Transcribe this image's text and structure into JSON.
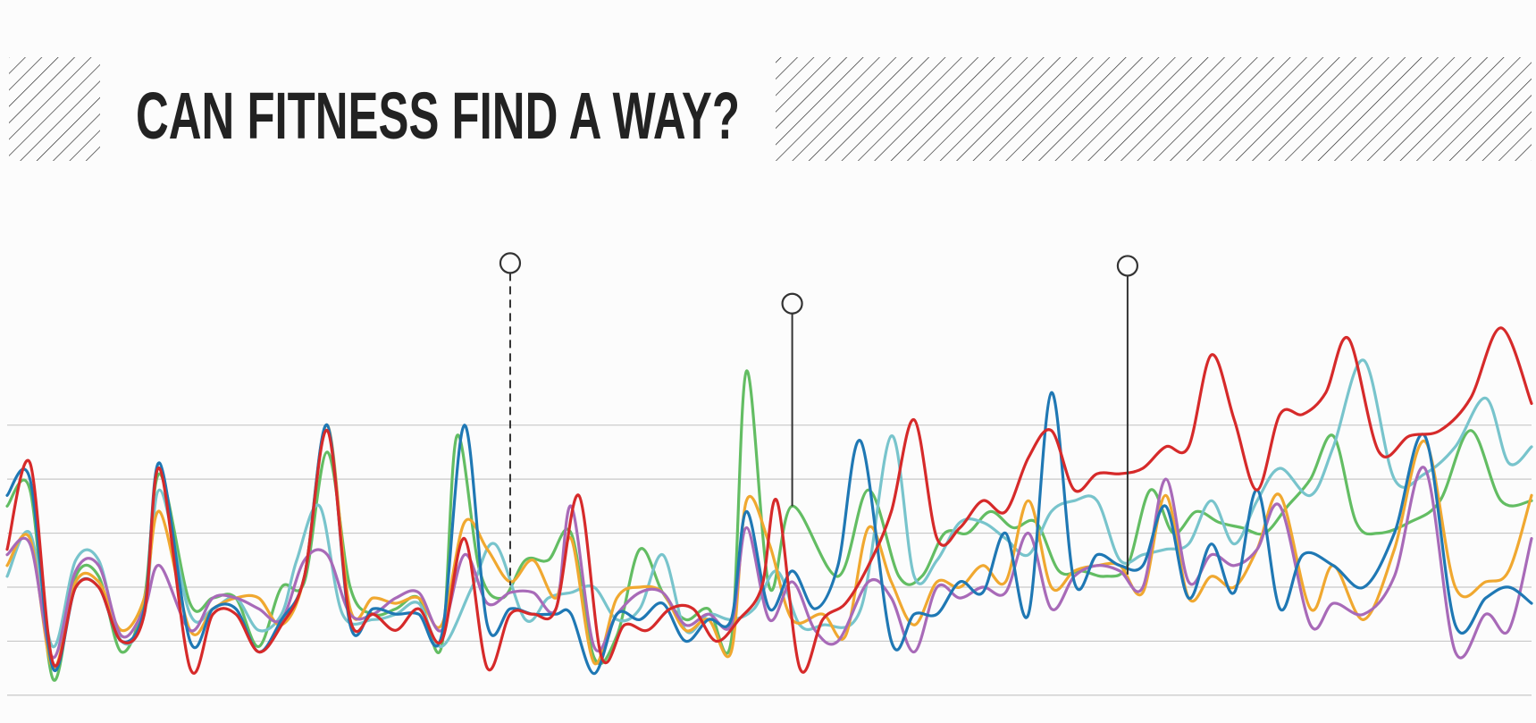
{
  "colors": {
    "background": "#fcfcfc",
    "title": "#222222",
    "hatch": "#222222",
    "grid": "#c8c8c8",
    "marker": "#333333"
  },
  "chart_data": {
    "type": "line",
    "title": "CAN FITNESS FIND A WAY?",
    "xlabel": "",
    "ylabel": "",
    "grid": true,
    "gridlines_y": [
      0,
      1,
      2,
      3,
      4,
      5
    ],
    "xlim": [
      0,
      200
    ],
    "ylim": [
      -0.3,
      8.9
    ],
    "annotations": [
      {
        "x": 66,
        "style": "dashed",
        "series": 0,
        "marker": "circle"
      },
      {
        "x": 103,
        "style": "solid",
        "series": 0,
        "marker": "circle"
      },
      {
        "x": 147,
        "style": "solid",
        "series": 2,
        "marker": "circle"
      }
    ],
    "series": [
      {
        "color": "#63bd63",
        "x": [
          0,
          3,
          6,
          9,
          12,
          15,
          18,
          20,
          24,
          27,
          30,
          33,
          36,
          39,
          42,
          45,
          48,
          51,
          54,
          57,
          59,
          62,
          65,
          68,
          71,
          74,
          77,
          80,
          83,
          86,
          89,
          92,
          95,
          97,
          100,
          103,
          109,
          113,
          117,
          120,
          123,
          126,
          129,
          132,
          135,
          138,
          141,
          144,
          147,
          150,
          153,
          156,
          159,
          162,
          165,
          168,
          171,
          174,
          177,
          180,
          184,
          188,
          192,
          196,
          200
        ],
        "y": [
          3.5,
          3.8,
          0.3,
          2.2,
          2.2,
          0.8,
          1.8,
          4.1,
          1.7,
          1.8,
          1.8,
          0.9,
          2.0,
          2.1,
          4.5,
          2.0,
          1.5,
          1.6,
          1.8,
          0.9,
          4.8,
          2.3,
          1.8,
          2.5,
          2.5,
          3.0,
          0.7,
          1.1,
          2.7,
          1.9,
          1.4,
          1.6,
          1.0,
          6.0,
          2.0,
          3.5,
          2.2,
          3.8,
          2.2,
          2.2,
          3.0,
          3.0,
          3.4,
          3.1,
          3.2,
          2.3,
          2.3,
          2.2,
          2.4,
          3.8,
          3.0,
          3.4,
          3.2,
          3.1,
          3.0,
          3.5,
          4.0,
          4.8,
          3.2,
          3.0,
          3.2,
          3.6,
          4.9,
          3.6,
          3.6
        ]
      },
      {
        "color": "#78c4cc",
        "x": [
          0,
          3,
          6,
          9,
          12,
          15,
          18,
          20,
          24,
          27,
          30,
          33,
          36,
          38,
          41,
          44,
          48,
          51,
          54,
          57,
          61,
          64,
          68,
          71,
          74,
          77,
          80,
          83,
          86,
          89,
          92,
          95,
          98,
          101,
          104,
          107,
          112,
          116,
          119,
          122,
          125,
          128,
          131,
          134,
          137,
          140,
          143,
          146,
          149,
          152,
          155,
          158,
          161,
          164,
          167,
          171,
          174,
          178,
          182,
          186,
          190,
          194,
          197,
          200
        ],
        "y": [
          2.2,
          3.0,
          0.9,
          2.5,
          2.5,
          1.0,
          1.5,
          3.8,
          1.5,
          1.6,
          1.8,
          1.2,
          1.5,
          2.5,
          3.5,
          1.5,
          1.4,
          1.5,
          1.7,
          0.9,
          2.0,
          2.8,
          1.4,
          1.8,
          1.9,
          2.0,
          1.4,
          1.6,
          2.6,
          1.2,
          1.5,
          1.4,
          1.6,
          2.3,
          1.3,
          1.3,
          1.6,
          4.8,
          2.2,
          2.5,
          3.2,
          3.2,
          2.9,
          2.6,
          3.4,
          3.6,
          3.6,
          2.5,
          2.6,
          2.7,
          2.8,
          3.6,
          2.8,
          3.6,
          4.2,
          3.7,
          4.6,
          6.2,
          4.0,
          4.1,
          4.6,
          5.5,
          4.3,
          4.6
        ]
      },
      {
        "color": "#f0a830",
        "x": [
          0,
          3,
          6,
          9,
          12,
          15,
          18,
          20,
          24,
          27,
          30,
          33,
          36,
          39,
          42,
          45,
          48,
          51,
          54,
          57,
          60,
          63,
          66,
          69,
          72,
          74,
          77,
          80,
          83,
          86,
          89,
          92,
          95,
          97,
          100,
          103,
          107,
          110,
          113,
          116,
          119,
          122,
          125,
          128,
          131,
          134,
          137,
          140,
          143,
          146,
          149,
          152,
          155,
          158,
          161,
          164,
          167,
          171,
          174,
          178,
          182,
          186,
          190,
          194,
          197,
          200
        ],
        "y": [
          2.4,
          2.9,
          0.5,
          2.1,
          2.1,
          1.2,
          1.8,
          3.4,
          1.2,
          1.6,
          1.8,
          1.8,
          1.3,
          2.2,
          5.0,
          1.6,
          1.8,
          1.7,
          1.8,
          1.3,
          3.2,
          2.7,
          2.1,
          2.5,
          1.8,
          2.9,
          0.6,
          1.8,
          2.0,
          1.9,
          1.2,
          1.4,
          0.8,
          3.6,
          2.8,
          1.4,
          1.5,
          1.1,
          3.1,
          2.1,
          1.3,
          2.1,
          2.0,
          2.4,
          2.1,
          3.6,
          2.0,
          2.3,
          2.4,
          2.4,
          1.9,
          3.7,
          1.8,
          2.2,
          2.0,
          2.7,
          3.7,
          1.6,
          2.4,
          1.4,
          2.7,
          4.7,
          2.0,
          2.1,
          2.3,
          3.7
        ]
      },
      {
        "color": "#a86ab8",
        "x": [
          0,
          3,
          6,
          9,
          12,
          15,
          18,
          20,
          24,
          27,
          30,
          33,
          36,
          39,
          42,
          45,
          48,
          51,
          54,
          57,
          60,
          63,
          66,
          69,
          72,
          74,
          77,
          80,
          83,
          86,
          89,
          92,
          95,
          97,
          100,
          103,
          106,
          109,
          113,
          116,
          119,
          122,
          125,
          128,
          131,
          134,
          137,
          140,
          143,
          146,
          149,
          152,
          155,
          158,
          161,
          164,
          167,
          171,
          174,
          178,
          182,
          186,
          190,
          194,
          197,
          200
        ],
        "y": [
          2.6,
          2.8,
          0.7,
          2.3,
          2.4,
          1.1,
          1.6,
          2.4,
          1.2,
          1.8,
          1.8,
          1.6,
          1.4,
          2.5,
          2.6,
          1.5,
          1.5,
          1.8,
          1.9,
          1.2,
          2.6,
          1.7,
          1.9,
          1.9,
          1.6,
          3.5,
          0.9,
          1.5,
          1.9,
          1.9,
          1.3,
          1.5,
          1.3,
          3.1,
          1.4,
          2.1,
          1.2,
          1.0,
          2.1,
          1.8,
          0.8,
          2.0,
          1.8,
          2.0,
          1.9,
          3.0,
          1.6,
          2.2,
          2.4,
          2.3,
          2.0,
          4.0,
          2.1,
          2.6,
          2.4,
          2.7,
          3.5,
          1.3,
          1.7,
          1.5,
          2.2,
          4.2,
          0.8,
          1.5,
          1.2,
          2.9
        ]
      },
      {
        "color": "#1f78b4",
        "x": [
          0,
          3,
          6,
          9,
          12,
          15,
          18,
          20,
          24,
          27,
          30,
          33,
          36,
          39,
          42,
          45,
          48,
          51,
          54,
          57,
          60,
          63,
          66,
          69,
          72,
          74,
          77,
          80,
          83,
          86,
          89,
          92,
          95,
          97,
          100,
          103,
          106,
          109,
          112,
          116,
          119,
          122,
          125,
          128,
          131,
          134,
          137,
          140,
          143,
          146,
          149,
          152,
          155,
          158,
          161,
          164,
          167,
          170,
          174,
          178,
          182,
          186,
          190,
          194,
          197,
          200
        ],
        "y": [
          3.7,
          4.0,
          0.5,
          2.0,
          2.0,
          1.0,
          1.6,
          4.3,
          1.0,
          1.6,
          1.6,
          0.8,
          1.4,
          2.2,
          5.0,
          1.3,
          1.6,
          1.5,
          1.5,
          1.1,
          5.0,
          1.3,
          1.6,
          1.5,
          1.5,
          1.5,
          0.4,
          1.5,
          1.4,
          1.7,
          1.0,
          1.4,
          1.4,
          3.4,
          1.6,
          2.3,
          1.6,
          2.4,
          4.7,
          1.0,
          1.5,
          1.5,
          2.1,
          1.9,
          3.0,
          1.5,
          5.6,
          2.1,
          2.6,
          2.4,
          2.4,
          3.5,
          1.8,
          2.8,
          1.9,
          3.8,
          1.6,
          2.6,
          2.4,
          2.0,
          3.0,
          4.8,
          1.3,
          1.8,
          2.0,
          1.7
        ]
      },
      {
        "color": "#d62a2a",
        "x": [
          0,
          3,
          6,
          9,
          12,
          15,
          18,
          20,
          24,
          27,
          30,
          33,
          36,
          39,
          42,
          45,
          48,
          51,
          54,
          57,
          60,
          63,
          66,
          69,
          72,
          75,
          78,
          81,
          84,
          87,
          90,
          93,
          96,
          99,
          101,
          104,
          107,
          110,
          113,
          116,
          119,
          122,
          125,
          128,
          131,
          134,
          137,
          140,
          143,
          146,
          149,
          152,
          155,
          158,
          161,
          164,
          167,
          170,
          173,
          176,
          180,
          184,
          188,
          192,
          196,
          200
        ],
        "y": [
          2.7,
          4.3,
          0.6,
          2.0,
          2.0,
          1.0,
          1.5,
          4.2,
          0.5,
          1.5,
          1.5,
          0.8,
          1.3,
          2.2,
          4.9,
          1.4,
          1.5,
          1.2,
          1.6,
          1.0,
          2.9,
          0.5,
          1.5,
          1.5,
          1.6,
          3.7,
          0.7,
          1.3,
          1.2,
          1.6,
          1.6,
          1.0,
          1.4,
          2.0,
          3.6,
          0.5,
          1.4,
          1.7,
          2.4,
          3.4,
          5.1,
          2.9,
          3.1,
          3.6,
          3.4,
          4.4,
          4.9,
          3.8,
          4.1,
          4.1,
          4.2,
          4.6,
          4.6,
          6.3,
          5.1,
          3.8,
          5.2,
          5.2,
          5.6,
          6.6,
          4.5,
          4.8,
          4.9,
          5.5,
          6.8,
          5.4
        ]
      }
    ]
  }
}
